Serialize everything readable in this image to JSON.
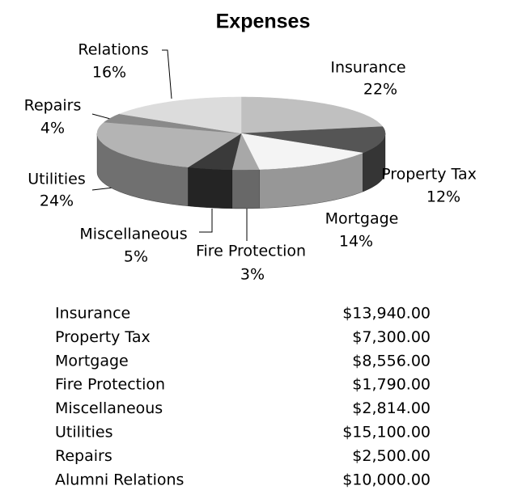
{
  "chart_data": {
    "type": "pie",
    "title": "Expenses",
    "categories": [
      "Insurance",
      "Property Tax",
      "Mortgage",
      "Fire Protection",
      "Miscellaneous",
      "Utilities",
      "Repairs",
      "Relations"
    ],
    "values": [
      22,
      12,
      14,
      3,
      5,
      24,
      4,
      16
    ],
    "value_labels": [
      "22%",
      "12%",
      "14%",
      "3%",
      "5%",
      "24%",
      "4%",
      "16%"
    ],
    "colors": [
      "#c0c0c0",
      "#555555",
      "#f4f4f4",
      "#a8a8a8",
      "#3a3a3a",
      "#b4b4b4",
      "#8a8a8a",
      "#dcdcdc"
    ]
  },
  "table": {
    "rows": [
      [
        "Insurance",
        "$13,940.00"
      ],
      [
        "Property Tax",
        "$7,300.00"
      ],
      [
        "Mortgage",
        "$8,556.00"
      ],
      [
        "Fire Protection",
        "$1,790.00"
      ],
      [
        "Miscellaneous",
        "$2,814.00"
      ],
      [
        "Utilities",
        "$15,100.00"
      ],
      [
        "Repairs",
        "$2,500.00"
      ],
      [
        "Alumni Relations",
        "$10,000.00"
      ]
    ]
  }
}
